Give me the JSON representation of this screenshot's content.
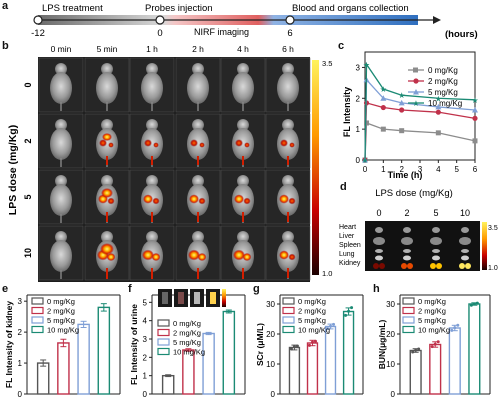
{
  "panel_labels": {
    "a": "a",
    "b": "b",
    "c": "c",
    "d": "d",
    "e": "e",
    "f": "f",
    "g": "g",
    "h": "h"
  },
  "timeline": {
    "segments": [
      "LPS treatment",
      "Probes injection",
      "Blood and organs collection"
    ],
    "sub_label": "NIRF imaging",
    "ticks": [
      "-12",
      "0",
      "6"
    ],
    "unit": "(hours)",
    "colors": {
      "lps": "#9b9b9b",
      "nirf": "#e04545",
      "collection": "#2f6fbf"
    }
  },
  "imaging": {
    "col_labels": [
      "0 min",
      "5 min",
      "1 h",
      "2 h",
      "4 h",
      "6 h"
    ],
    "row_labels": [
      "0",
      "2",
      "5",
      "10"
    ],
    "ylabel": "LPS dose (mg/Kg)",
    "cbar_max": "3.5",
    "cbar_min": "1.0"
  },
  "organs": {
    "title": "LPS dose (mg/Kg)",
    "col_labels": [
      "0",
      "2",
      "5",
      "10"
    ],
    "organ_names": [
      "Heart",
      "Liver",
      "Spleen",
      "Lung",
      "Kidney"
    ],
    "cbar_max": "3.5",
    "cbar_min": "1.0"
  },
  "chart_data": [
    {
      "id": "c",
      "type": "line",
      "xlabel": "Time (h)",
      "ylabel": "FL Intensity",
      "xlim": [
        0,
        6
      ],
      "ylim": [
        0,
        3.5
      ],
      "xticks": [
        "0",
        "1",
        "2",
        "3",
        "4",
        "5",
        "6"
      ],
      "yticks": [
        "0",
        "1",
        "2",
        "3"
      ],
      "x": [
        0,
        0.083,
        1,
        2,
        4,
        6
      ],
      "series": [
        {
          "name": "0 mg/Kg",
          "color": "#8c8c8c",
          "marker": "square",
          "values": [
            0,
            1.2,
            1.0,
            0.95,
            0.88,
            0.62
          ]
        },
        {
          "name": "2 mg/Kg",
          "color": "#c0314a",
          "marker": "circle",
          "values": [
            0,
            1.85,
            1.7,
            1.62,
            1.55,
            1.35
          ]
        },
        {
          "name": "5 mg/Kg",
          "color": "#7f9fd6",
          "marker": "triangle",
          "values": [
            0,
            2.6,
            2.0,
            1.85,
            1.72,
            1.62
          ]
        },
        {
          "name": "10 mg/Kg",
          "color": "#1b8a74",
          "marker": "star",
          "values": [
            0,
            3.1,
            2.3,
            2.1,
            2.0,
            1.95
          ]
        }
      ]
    },
    {
      "id": "e",
      "type": "bar",
      "ylabel": "FL Intensity of kidney",
      "ylim": [
        0,
        3.2
      ],
      "yticks": [
        "0",
        "1",
        "2",
        "3"
      ],
      "series": [
        {
          "name": "0 mg/Kg",
          "color": "#555555",
          "value": 1.0,
          "err": 0.1
        },
        {
          "name": "2 mg/Kg",
          "color": "#c0314a",
          "value": 1.65,
          "err": 0.12
        },
        {
          "name": "5 mg/Kg",
          "color": "#7f9fd6",
          "value": 2.25,
          "err": 0.1
        },
        {
          "name": "10 mg/Kg",
          "color": "#1b8a74",
          "value": 2.8,
          "err": 0.12
        }
      ]
    },
    {
      "id": "f",
      "type": "bar",
      "ylabel": "FL Intensity of urine",
      "ylim": [
        0,
        5.4
      ],
      "yticks": [
        "0",
        "1",
        "2",
        "3",
        "4",
        "5"
      ],
      "series": [
        {
          "name": "0 mg/Kg",
          "color": "#555555",
          "value": 1.0,
          "err": 0.05
        },
        {
          "name": "2 mg/Kg",
          "color": "#c0314a",
          "value": 2.4,
          "err": 0.07
        },
        {
          "name": "5 mg/Kg",
          "color": "#7f9fd6",
          "value": 3.3,
          "err": 0.06
        },
        {
          "name": "10 mg/Kg",
          "color": "#1b8a74",
          "value": 4.5,
          "err": 0.08
        }
      ]
    },
    {
      "id": "g",
      "type": "bar",
      "ylabel": "SCr (μM/L)",
      "ylim": [
        0,
        33
      ],
      "yticks": [
        "0",
        "10",
        "20",
        "30"
      ],
      "series": [
        {
          "name": "0 mg/Kg",
          "color": "#555555",
          "value": 15.5,
          "err": 0.8,
          "points": [
            15.0,
            15.8,
            16.0
          ]
        },
        {
          "name": "2 mg/Kg",
          "color": "#c0314a",
          "value": 17.0,
          "err": 0.9,
          "points": [
            16.2,
            17.3,
            17.6
          ]
        },
        {
          "name": "5 mg/Kg",
          "color": "#7f9fd6",
          "value": 22.5,
          "err": 0.8,
          "points": [
            21.8,
            22.6,
            23.2
          ]
        },
        {
          "name": "10 mg/Kg",
          "color": "#1b8a74",
          "value": 27.5,
          "err": 1.2,
          "points": [
            26.2,
            27.6,
            28.8
          ]
        }
      ]
    },
    {
      "id": "h",
      "type": "bar",
      "ylabel": "BUN(μg/mL)",
      "ylim": [
        0,
        33
      ],
      "yticks": [
        "0",
        "10",
        "20",
        "30"
      ],
      "series": [
        {
          "name": "0 mg/Kg",
          "color": "#555555",
          "value": 14.5,
          "err": 0.6,
          "points": [
            14.0,
            14.6,
            15.0
          ]
        },
        {
          "name": "2 mg/Kg",
          "color": "#c0314a",
          "value": 16.5,
          "err": 0.9,
          "points": [
            15.8,
            16.6,
            17.4
          ]
        },
        {
          "name": "5 mg/Kg",
          "color": "#7f9fd6",
          "value": 22.0,
          "err": 0.9,
          "points": [
            21.2,
            22.1,
            22.9
          ]
        },
        {
          "name": "10 mg/Kg",
          "color": "#1b8a74",
          "value": 30.0,
          "err": 0.4,
          "points": [
            29.6,
            30.0,
            30.3
          ]
        }
      ]
    }
  ]
}
